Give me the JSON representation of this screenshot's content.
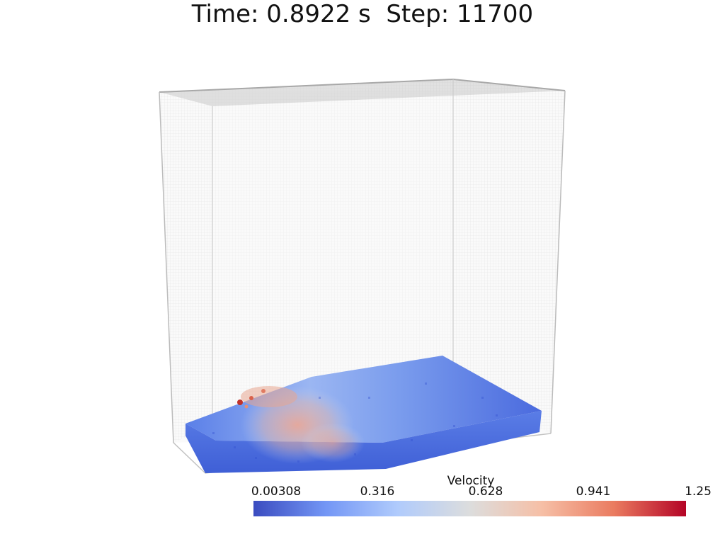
{
  "title": "Time: 0.8922 s  Step: 11700",
  "colorbar": {
    "title": "Velocity",
    "tick_labels": [
      "0.00308",
      "0.316",
      "0.628",
      "0.941",
      "1.25"
    ],
    "colormap": "coolwarm",
    "colors": [
      "#3b4cc0",
      "#7396f5",
      "#b0cbfc",
      "#dcdddd",
      "#f6bfa6",
      "#ea7b60",
      "#b40426"
    ]
  },
  "scene": {
    "container_color": "#c8c8c8",
    "fluid_base_color": "#4a6fe0"
  }
}
